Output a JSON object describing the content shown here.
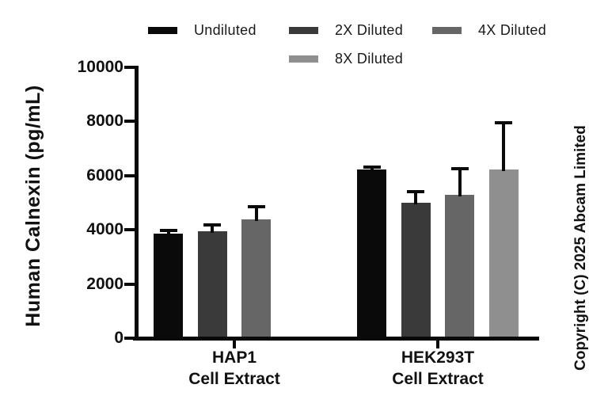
{
  "copyright": "Copyright (C) 2025 Abcam Limited",
  "chart_data": {
    "type": "bar",
    "title": "",
    "xlabel": "",
    "ylabel": "Human Calnexin (pg/mL)",
    "ylim": [
      0,
      10000
    ],
    "yticks": [
      0,
      2000,
      4000,
      6000,
      8000,
      10000
    ],
    "grid": false,
    "legend_position": "top",
    "categories": [
      [
        "HAP1",
        "Cell Extract"
      ],
      [
        "HEK293T",
        "Cell Extract"
      ]
    ],
    "series": [
      {
        "name": "Undiluted",
        "color": "#0a0a0a",
        "values": [
          3850,
          6230
        ],
        "errors_up": [
          120,
          80
        ]
      },
      {
        "name": "2X Diluted",
        "color": "#3a3a3a",
        "values": [
          3950,
          5000
        ],
        "errors_up": [
          230,
          400
        ]
      },
      {
        "name": "4X Diluted",
        "color": "#666666",
        "values": [
          4400,
          5300
        ],
        "errors_up": [
          460,
          960
        ]
      },
      {
        "name": "8X Diluted",
        "color": "#8f8f8f",
        "values": [
          null,
          6230
        ],
        "errors_up": [
          null,
          1730
        ]
      }
    ]
  }
}
